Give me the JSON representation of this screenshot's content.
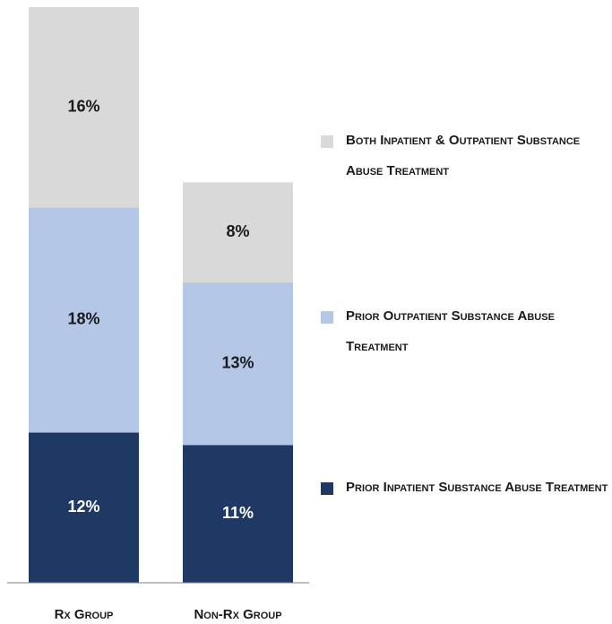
{
  "chart_data": {
    "type": "stacked_bar",
    "categories": [
      "Rx Group",
      "Non-Rx Group"
    ],
    "series": [
      {
        "name": "Prior Inpatient Substance Abuse Treatment",
        "color": "#1f3864",
        "label_color": "#ffffff",
        "values": [
          12,
          11
        ],
        "value_labels": [
          "12%",
          "11%"
        ]
      },
      {
        "name": "Prior Outpatient Substance Abuse Treatment",
        "color": "#b4c7e7",
        "label_color": "#1a1a1a",
        "values": [
          18,
          13
        ],
        "value_labels": [
          "18%",
          "13%"
        ]
      },
      {
        "name": "Both Inpatient & Outpatient Substance Abuse Treatment",
        "color": "#d9d9d9",
        "label_color": "#1a1a1a",
        "values": [
          16,
          8
        ],
        "value_labels": [
          "16%",
          "8%"
        ]
      }
    ]
  }
}
